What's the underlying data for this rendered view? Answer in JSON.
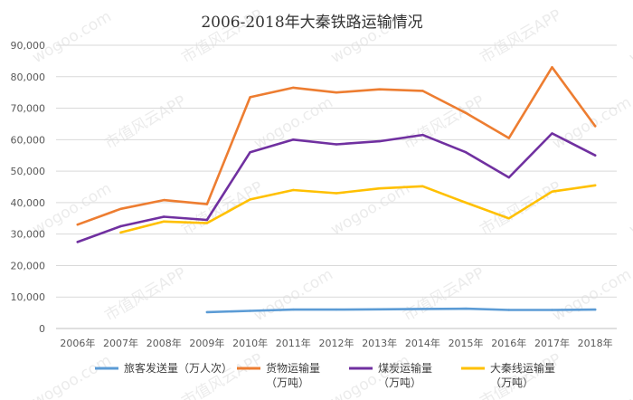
{
  "chart_data": {
    "type": "line",
    "title": "2006-2018年大秦铁路运输情况",
    "categories": [
      "2006年",
      "2007年",
      "2008年",
      "2009年",
      "2010年",
      "2011年",
      "2012年",
      "2013年",
      "2014年",
      "2015年",
      "2016年",
      "2017年",
      "2018年"
    ],
    "ylim": [
      0,
      90000
    ],
    "yticks": [
      0,
      10000,
      20000,
      30000,
      40000,
      50000,
      60000,
      70000,
      80000,
      90000
    ],
    "ytick_labels": [
      "0",
      "10,000",
      "20,000",
      "30,000",
      "40,000",
      "50,000",
      "60,000",
      "70,000",
      "80,000",
      "90,000"
    ],
    "grid": true,
    "legend_position": "bottom",
    "series": [
      {
        "name": "旅客发送量（万人次）",
        "legend_lines": [
          "旅客发送量（万人次）"
        ],
        "color": "#5B9BD5",
        "values": [
          null,
          null,
          null,
          5200,
          5600,
          6000,
          6000,
          6100,
          6200,
          6300,
          5900,
          5900,
          6000
        ]
      },
      {
        "name": "货物运输量（万吨）",
        "legend_lines": [
          "货物运输量",
          "（万吨）"
        ],
        "color": "#ED7D31",
        "values": [
          33000,
          38000,
          40800,
          39500,
          73500,
          76500,
          75000,
          76000,
          75500,
          68500,
          60500,
          83000,
          64300
        ]
      },
      {
        "name": "煤炭运输量（万吨）",
        "legend_lines": [
          "煤炭运输量",
          "（万吨）"
        ],
        "color": "#7030A0",
        "values": [
          27500,
          32500,
          35500,
          34500,
          56000,
          60000,
          58500,
          59500,
          61500,
          56000,
          48000,
          62000,
          55000
        ]
      },
      {
        "name": "大秦线运输量（万吨）",
        "legend_lines": [
          "大秦线运输量",
          "（万吨）"
        ],
        "color": "#FFC000",
        "values": [
          null,
          30500,
          34000,
          33500,
          41000,
          44000,
          43000,
          44500,
          45200,
          40000,
          35000,
          43500,
          45500
        ]
      }
    ]
  },
  "watermark": {
    "texts": [
      "市值风云APP",
      "wogoo.com"
    ]
  }
}
